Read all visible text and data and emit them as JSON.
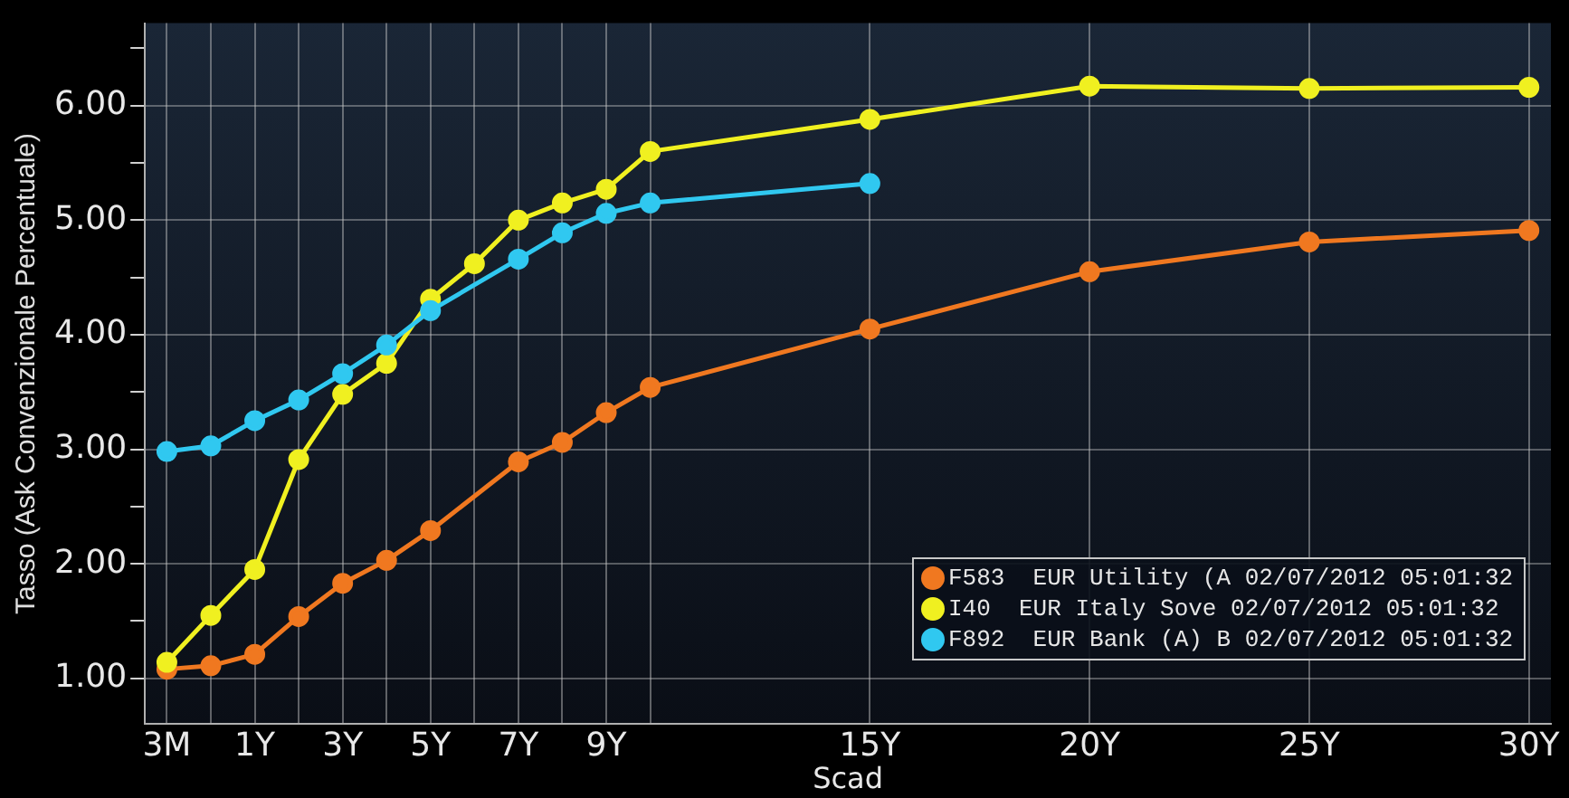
{
  "chart_data": {
    "type": "line",
    "xlabel": "Scad",
    "ylabel": "Tasso (Ask Convenzionale Percentuale)",
    "categories": [
      "3M",
      null,
      "1Y",
      null,
      "3Y",
      null,
      "5Y",
      null,
      "7Y",
      null,
      "9Y",
      null,
      null,
      null,
      null,
      null,
      "15Y",
      null,
      null,
      null,
      null,
      "20Y",
      null,
      null,
      null,
      null,
      "25Y",
      null,
      null,
      null,
      null,
      "30Y"
    ],
    "series": [
      {
        "name": "F583  EUR Utility (A 02/07/2012 05:01:32",
        "color": "#f07820",
        "values": [
          1.08,
          1.11,
          1.21,
          1.54,
          1.83,
          2.03,
          2.29,
          null,
          2.89,
          3.06,
          3.32,
          3.54,
          null,
          null,
          null,
          null,
          4.05,
          null,
          null,
          null,
          null,
          4.55,
          null,
          null,
          null,
          null,
          4.81,
          null,
          null,
          null,
          null,
          4.91
        ]
      },
      {
        "name": "I40  EUR Italy Sove 02/07/2012 05:01:32",
        "color": "#f0f020",
        "values": [
          1.14,
          1.55,
          1.95,
          2.91,
          3.48,
          3.75,
          4.31,
          4.62,
          5.0,
          5.15,
          5.27,
          5.6,
          null,
          null,
          null,
          null,
          5.88,
          null,
          null,
          null,
          null,
          6.17,
          null,
          null,
          null,
          null,
          6.15,
          null,
          null,
          null,
          null,
          6.16
        ]
      },
      {
        "name": "F892  EUR Bank (A) B 02/07/2012 05:01:32",
        "color": "#30c8f0",
        "values": [
          2.98,
          3.03,
          3.25,
          3.43,
          3.66,
          3.91,
          4.21,
          null,
          4.66,
          4.89,
          5.06,
          5.15,
          null,
          null,
          null,
          null,
          5.32,
          null,
          null,
          null,
          null,
          null,
          null,
          null,
          null,
          null,
          null,
          null,
          null,
          null,
          null,
          null
        ]
      }
    ],
    "ylim": [
      0.6,
      6.72
    ],
    "yticks": [
      {
        "value": 1,
        "label": "1.00"
      },
      {
        "value": 1.5,
        "label": null
      },
      {
        "value": 2,
        "label": "2.00"
      },
      {
        "value": 2.5,
        "label": null
      },
      {
        "value": 3,
        "label": "3.00"
      },
      {
        "value": 3.5,
        "label": null
      },
      {
        "value": 4,
        "label": "4.00"
      },
      {
        "value": 4.5,
        "label": null
      },
      {
        "value": 5,
        "label": "5.00"
      },
      {
        "value": 5.5,
        "label": null
      },
      {
        "value": 6,
        "label": "6.00"
      },
      {
        "value": 6.5,
        "label": null
      }
    ],
    "grid": true,
    "legend": "bottom right",
    "marker": "circle",
    "line_style": "solid"
  }
}
